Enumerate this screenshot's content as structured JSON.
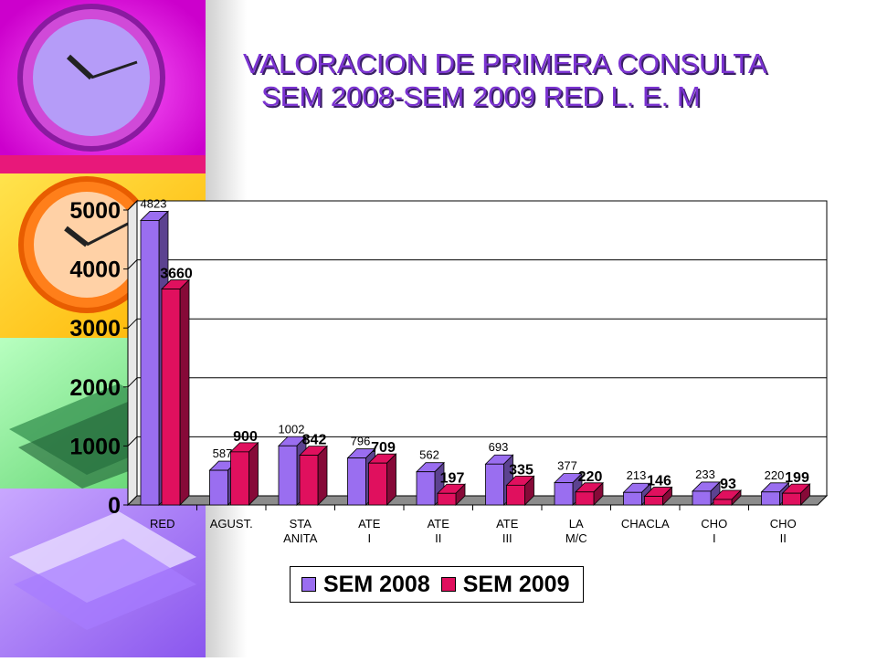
{
  "title": {
    "line1": "VALORACION DE PRIMERA CONSULTA",
    "line2": "SEM 2008-SEM 2009 RED L. E. M"
  },
  "colors": {
    "series2008": "#9a6ef0",
    "series2009": "#e0105e",
    "title": "#7b33d1"
  },
  "sidebar_icons": [
    "clock-icon",
    "clock-icon",
    "books-icon",
    "books-icon"
  ],
  "chart_data": {
    "type": "bar",
    "categories": [
      "RED",
      "AGUST.",
      "STA ANITA",
      "ATE I",
      "ATE II",
      "ATE III",
      "LA M/C",
      "CHACLA",
      "CHO I",
      "CHO II"
    ],
    "series": [
      {
        "name": "SEM 2008",
        "values": [
          4823,
          587,
          1002,
          796,
          562,
          693,
          377,
          213,
          233,
          220
        ]
      },
      {
        "name": "SEM 2009",
        "values": [
          3660,
          900,
          842,
          709,
          197,
          335,
          220,
          146,
          93,
          199
        ]
      }
    ],
    "ylim": [
      0,
      5000
    ],
    "yticks": [
      "0",
      "1000",
      "2000",
      "3000",
      "4000",
      "5000"
    ],
    "grid": true,
    "legend_position": "bottom"
  }
}
